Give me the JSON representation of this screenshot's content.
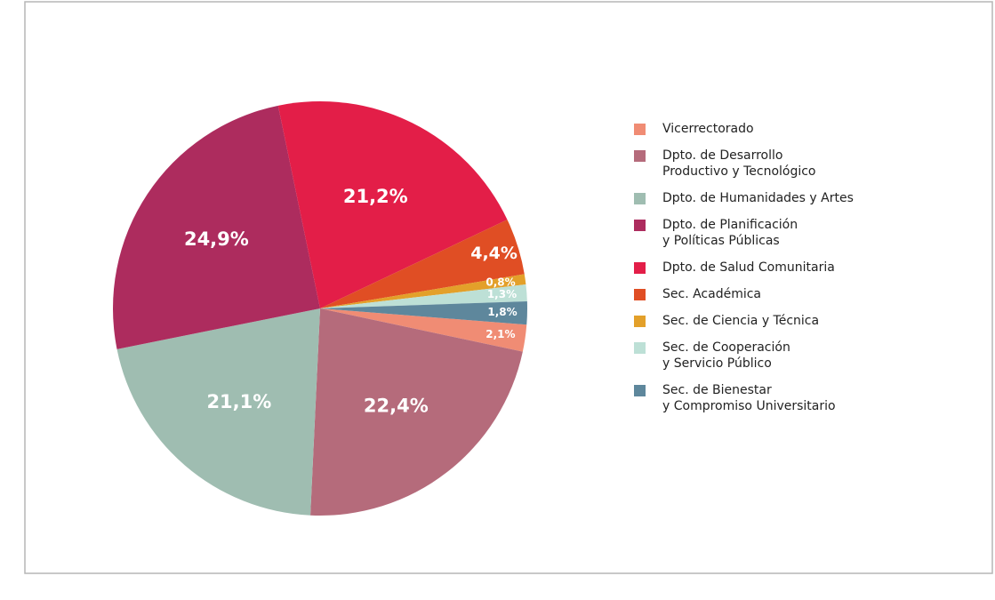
{
  "chart_data": {
    "type": "pie",
    "categories": [
      "Vicerrectorado",
      "Dpto. de Desarrollo\nProductivo y Tecnológico",
      "Dpto. de Humanidades y Artes",
      "Dpto. de Planificación\ny Políticas Públicas",
      "Dpto. de Salud Comunitaria",
      "Sec. Académica",
      "Sec. de Ciencia y Técnica",
      "Sec. de Cooperación\ny Servicio Público",
      "Sec. de Bienestar\ny Compromiso Universitario"
    ],
    "values": [
      2.1,
      22.4,
      21.1,
      24.9,
      21.2,
      4.4,
      0.8,
      1.3,
      1.8
    ],
    "value_labels": [
      "2,1%",
      "22,4%",
      "21,1%",
      "24,9%",
      "21,2%",
      "4,4%",
      "0,8%",
      "1,3%",
      "1,8%"
    ],
    "colors": [
      "#f08c74",
      "#b56b7b",
      "#9fbdb1",
      "#ad2c5e",
      "#e31e48",
      "#e04e24",
      "#e3a02a",
      "#bde0d6",
      "#5e879c"
    ],
    "legend": "right"
  }
}
